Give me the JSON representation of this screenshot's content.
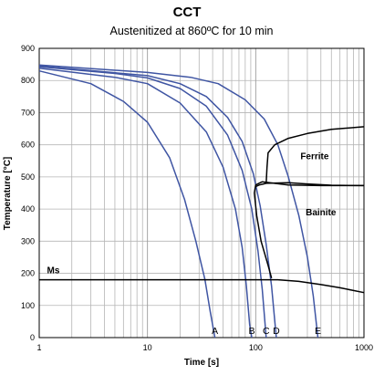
{
  "chart_data": {
    "type": "line",
    "title": "CCT",
    "subtitle": "Austenitized at 860ºC for 10 min",
    "xlabel": "Time [s]",
    "ylabel": "Temperature [°C]",
    "x_scale": "log",
    "xlim": [
      1,
      1000
    ],
    "ylim": [
      0,
      900
    ],
    "x_ticks": [
      1,
      10,
      100,
      1000
    ],
    "y_ticks": [
      0,
      100,
      200,
      300,
      400,
      500,
      600,
      700,
      800,
      900
    ],
    "grid": true,
    "colors": {
      "cooling": "#3f55a3",
      "boundary": "#000000"
    },
    "cooling_curves": [
      {
        "name": "A",
        "points": [
          [
            1,
            830
          ],
          [
            3,
            790
          ],
          [
            6,
            735
          ],
          [
            10,
            670
          ],
          [
            16,
            560
          ],
          [
            22,
            430
          ],
          [
            28,
            300
          ],
          [
            34,
            180
          ],
          [
            38,
            80
          ],
          [
            42,
            0
          ]
        ]
      },
      {
        "name": "B",
        "points": [
          [
            1,
            838
          ],
          [
            5,
            810
          ],
          [
            10,
            790
          ],
          [
            20,
            730
          ],
          [
            35,
            640
          ],
          [
            50,
            530
          ],
          [
            65,
            400
          ],
          [
            75,
            280
          ],
          [
            82,
            160
          ],
          [
            88,
            40
          ],
          [
            92,
            0
          ]
        ]
      },
      {
        "name": "C",
        "points": [
          [
            1,
            843
          ],
          [
            5,
            822
          ],
          [
            10,
            808
          ],
          [
            20,
            775
          ],
          [
            35,
            720
          ],
          [
            55,
            630
          ],
          [
            75,
            520
          ],
          [
            92,
            400
          ],
          [
            105,
            270
          ],
          [
            115,
            150
          ],
          [
            125,
            0
          ]
        ]
      },
      {
        "name": "D",
        "points": [
          [
            1,
            845
          ],
          [
            10,
            815
          ],
          [
            20,
            790
          ],
          [
            35,
            750
          ],
          [
            55,
            685
          ],
          [
            75,
            610
          ],
          [
            95,
            510
          ],
          [
            110,
            410
          ],
          [
            125,
            290
          ],
          [
            140,
            160
          ],
          [
            155,
            0
          ]
        ]
      },
      {
        "name": "E",
        "points": [
          [
            1,
            848
          ],
          [
            10,
            825
          ],
          [
            25,
            810
          ],
          [
            45,
            790
          ],
          [
            80,
            740
          ],
          [
            120,
            680
          ],
          [
            160,
            600
          ],
          [
            200,
            500
          ],
          [
            250,
            380
          ],
          [
            300,
            250
          ],
          [
            340,
            130
          ],
          [
            375,
            0
          ]
        ]
      }
    ],
    "transformation_boundaries": [
      {
        "name": "Ferrite start",
        "points": [
          [
            100,
            470
          ],
          [
            108,
            475
          ],
          [
            118,
            478
          ],
          [
            125,
            480
          ],
          [
            127,
            530
          ],
          [
            130,
            575
          ],
          [
            150,
            600
          ],
          [
            200,
            620
          ],
          [
            300,
            635
          ],
          [
            500,
            648
          ],
          [
            700,
            652
          ],
          [
            1000,
            656
          ]
        ]
      },
      {
        "name": "Bainite start",
        "points": [
          [
            140,
            185
          ],
          [
            130,
            225
          ],
          [
            112,
            300
          ],
          [
            102,
            380
          ],
          [
            97,
            450
          ],
          [
            100,
            475
          ],
          [
            115,
            485
          ],
          [
            200,
            475
          ],
          [
            400,
            473
          ],
          [
            1000,
            473
          ]
        ]
      },
      {
        "name": "Ferrite/Bainite boundary",
        "points": [
          [
            125,
            480
          ],
          [
            200,
            482
          ],
          [
            300,
            478
          ],
          [
            500,
            474
          ],
          [
            1000,
            473
          ]
        ]
      },
      {
        "name": "Ms",
        "points": [
          [
            1,
            180
          ],
          [
            10,
            180
          ],
          [
            100,
            180
          ],
          [
            160,
            180
          ],
          [
            250,
            175
          ],
          [
            400,
            165
          ],
          [
            600,
            155
          ],
          [
            1000,
            140
          ]
        ]
      }
    ],
    "annotations": [
      {
        "text": "Ferrite",
        "x": 350,
        "y": 555
      },
      {
        "text": "Bainite",
        "x": 400,
        "y": 380
      },
      {
        "text": "Ms",
        "x": 1.35,
        "y": 200
      }
    ],
    "curve_labels": [
      {
        "text": "A",
        "x": 42
      },
      {
        "text": "B",
        "x": 92
      },
      {
        "text": "C",
        "x": 125
      },
      {
        "text": "D",
        "x": 155
      },
      {
        "text": "E",
        "x": 375
      }
    ]
  }
}
